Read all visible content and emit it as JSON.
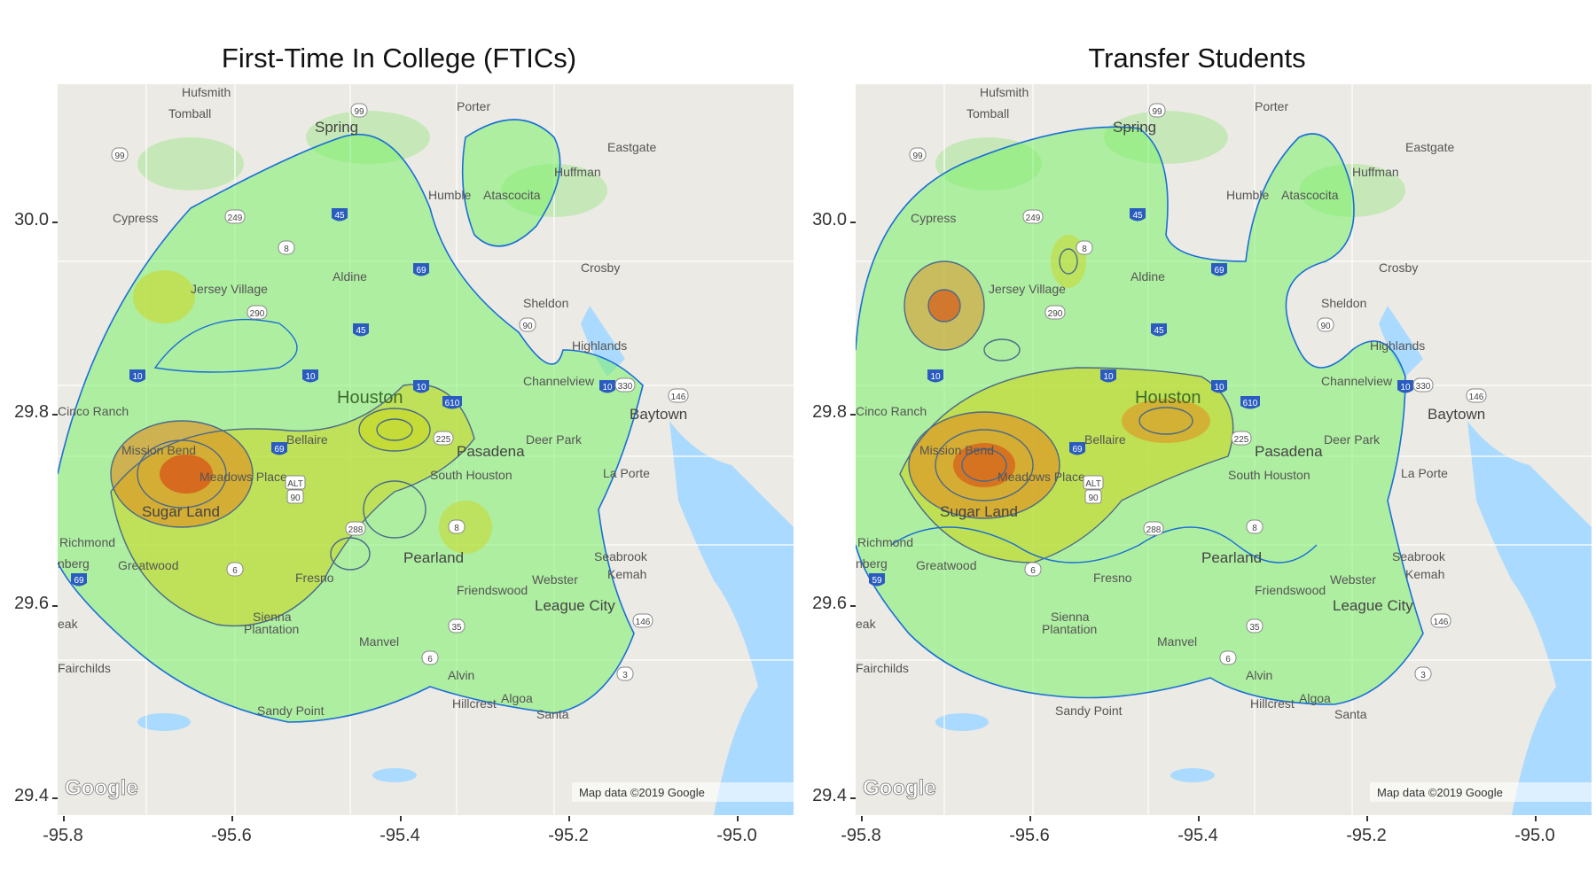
{
  "panels": [
    {
      "title": "First-Time In College (FTICs)",
      "offset_x": 0,
      "variant": "ftic"
    },
    {
      "title": "Transfer Students",
      "offset_x": 900,
      "variant": "transfer"
    }
  ],
  "axes": {
    "x_ticks": [
      "-95.8",
      "-95.6",
      "-95.4",
      "-95.2",
      "-95.0"
    ],
    "y_ticks": [
      "30.0",
      "29.8",
      "29.6",
      "29.4"
    ]
  },
  "map_labels": {
    "hufsmith": "Hufsmith",
    "tomball": "Tomball",
    "spring": "Spring",
    "porter": "Porter",
    "eastgate": "Eastgate",
    "huffman": "Huffman",
    "humble": "Humble",
    "atascocita": "Atascocita",
    "cypress": "Cypress",
    "crosby": "Crosby",
    "aldine": "Aldine",
    "jersey_village": "Jersey Village",
    "sheldon": "Sheldon",
    "highlands": "Highlands",
    "channelview": "Channelview",
    "houston": "Houston",
    "baytown": "Baytown",
    "cinco_ranch": "Cinco Ranch",
    "bellaire": "Bellaire",
    "deer_park": "Deer Park",
    "pasadena": "Pasadena",
    "mission_bend": "Mission Bend",
    "meadows_place": "Meadows Place",
    "south_houston": "South Houston",
    "la_porte": "La Porte",
    "sugar_land": "Sugar Land",
    "richmond": "Richmond",
    "rosenberg": "nberg",
    "greatwood": "Greatwood",
    "pearland": "Pearland",
    "seabrook": "Seabrook",
    "kemah": "Kemah",
    "fresno": "Fresno",
    "friendswood": "Friendswood",
    "webster": "Webster",
    "league_city": "League City",
    "sienna": "Sienna",
    "plantation": "Plantation",
    "manvel": "Manvel",
    "eak": "eak",
    "fairchilds": "Fairchilds",
    "alvin": "Alvin",
    "algoa": "Algoa",
    "hillcrest": "Hillcrest",
    "sandy_point": "Sandy Point",
    "santa": "Santa",
    "google": "Google",
    "map_data": "Map data ©2019 Google"
  },
  "shields": [
    "99",
    "249",
    "8",
    "45",
    "69",
    "290",
    "10",
    "610",
    "225",
    "330",
    "146",
    "90",
    "ALT",
    "288",
    "6",
    "35",
    "3",
    "59"
  ],
  "colors": {
    "contour_outer": "#1a6fd6",
    "contour_inner": "#4a6a8a",
    "density_low": "#7cf06a",
    "density_mid": "#c8d82a",
    "density_high": "#e38a1c",
    "density_peak": "#d65a1a",
    "water": "#aadaff",
    "park": "#c6e8b8"
  }
}
